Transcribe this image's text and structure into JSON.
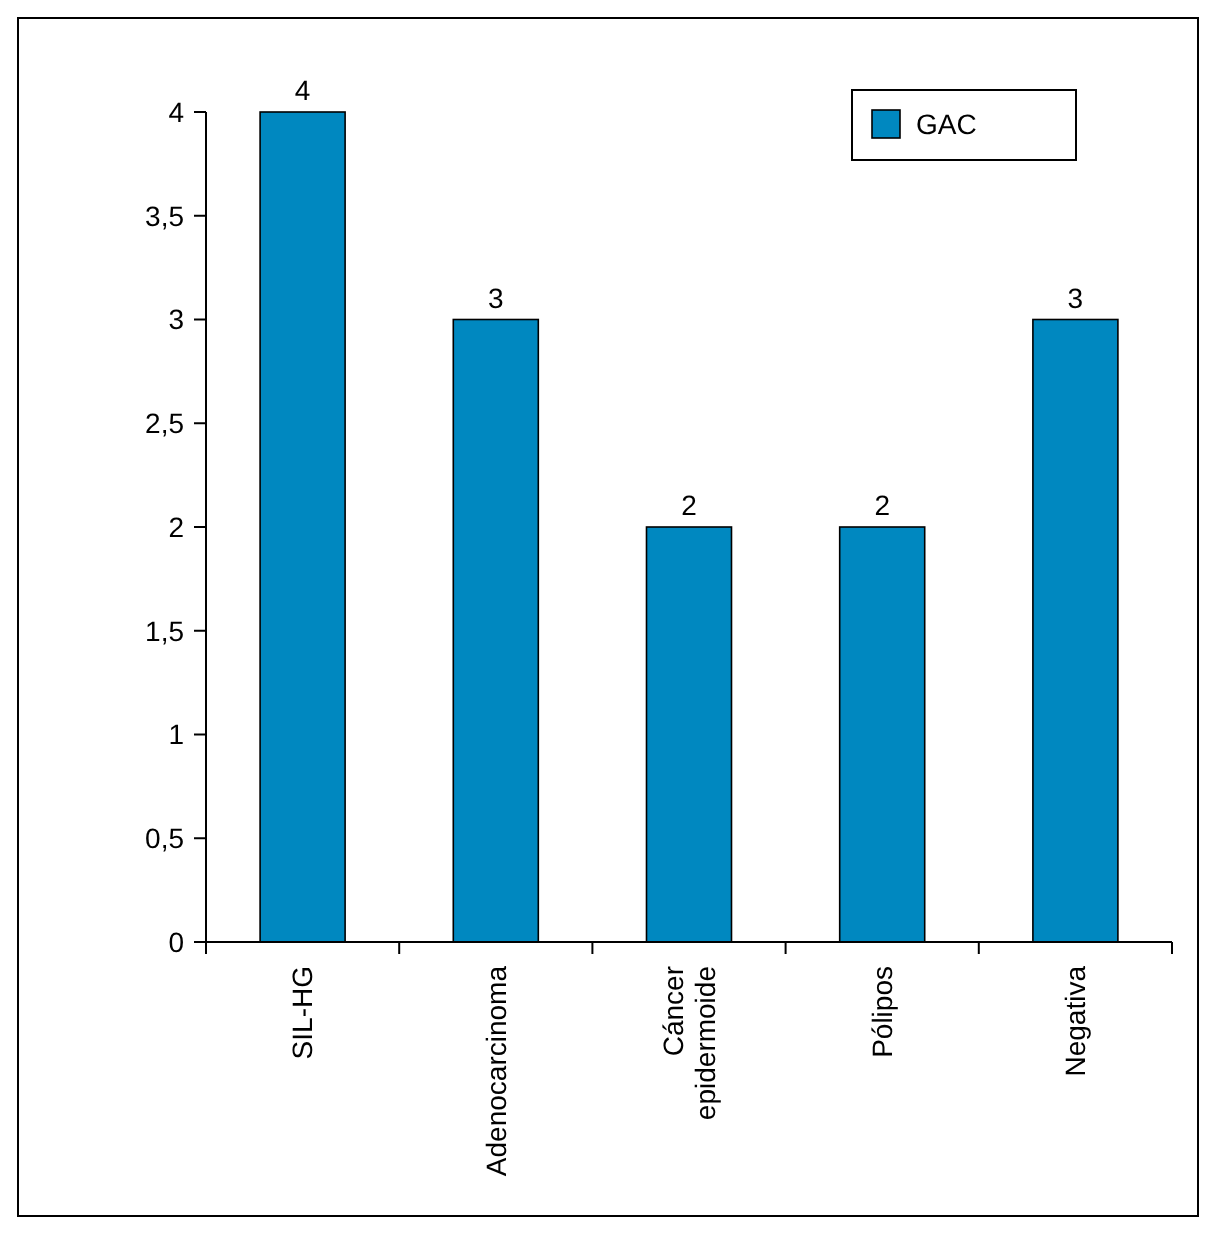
{
  "chart_data": {
    "type": "bar",
    "categories": [
      "SIL-HG",
      "Adenocarcinoma",
      "Cáncer epidermoide",
      "Pólipos",
      "Negativa"
    ],
    "series": [
      {
        "name": "GAC",
        "color": "#0088c0",
        "values": [
          4,
          3,
          2,
          2,
          3
        ]
      }
    ],
    "ylim": [
      0,
      4
    ],
    "yticks": [
      0,
      {
        "value": 0.5,
        "label": "0,5"
      },
      1,
      {
        "value": 1.5,
        "label": "1,5"
      },
      2,
      {
        "value": 2.5,
        "label": "2,5"
      },
      3,
      {
        "value": 3.5,
        "label": "3,5"
      },
      4
    ],
    "data_labels": true,
    "legend": "top right",
    "grid": false
  }
}
